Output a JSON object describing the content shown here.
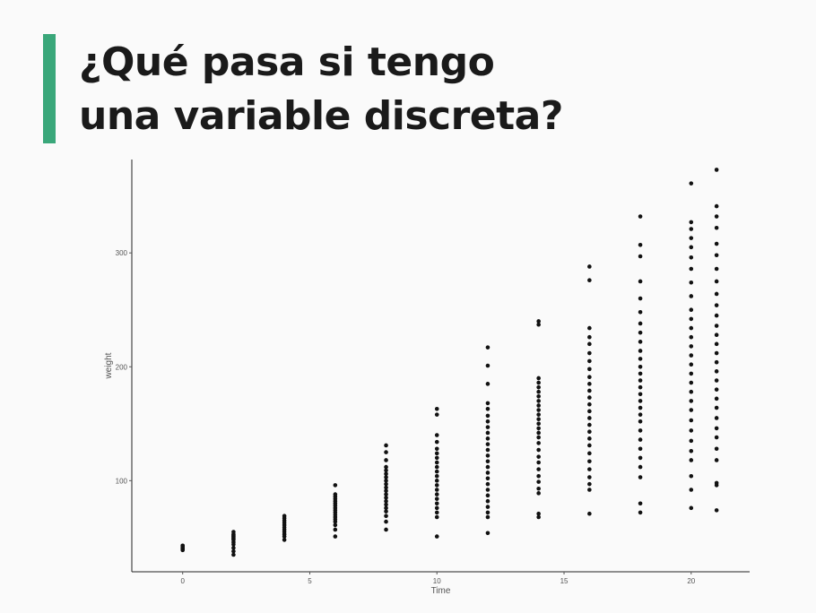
{
  "slide": {
    "title_line1": "¿Qué pasa si tengo",
    "title_line2": "una variable discreta?",
    "accent_color": "#3aa77a"
  },
  "chart_data": {
    "type": "scatter",
    "xlabel": "Time",
    "ylabel": "weight",
    "xlim": [
      -2,
      22.3
    ],
    "ylim": [
      20,
      382
    ],
    "x_ticks": [
      0,
      5,
      10,
      15,
      20
    ],
    "y_ticks": [
      100,
      200,
      300
    ],
    "grid": false,
    "point_color": "#111111",
    "points_by_time": [
      {
        "x": 0,
        "y": [
          39,
          40,
          41,
          42,
          43
        ]
      },
      {
        "x": 2,
        "y": [
          35,
          38,
          41,
          44,
          46,
          48,
          49,
          50,
          51,
          52,
          53,
          55
        ]
      },
      {
        "x": 4,
        "y": [
          48,
          51,
          53,
          55,
          57,
          59,
          61,
          63,
          65,
          67,
          69
        ]
      },
      {
        "x": 6,
        "y": [
          51,
          57,
          61,
          64,
          66,
          68,
          70,
          72,
          74,
          76,
          78,
          80,
          82,
          84,
          86,
          88,
          96
        ]
      },
      {
        "x": 8,
        "y": [
          57,
          64,
          69,
          73,
          76,
          79,
          82,
          85,
          88,
          91,
          94,
          97,
          100,
          103,
          106,
          109,
          112,
          118,
          125,
          131
        ]
      },
      {
        "x": 10,
        "y": [
          51,
          68,
          72,
          76,
          80,
          84,
          88,
          92,
          96,
          100,
          104,
          108,
          112,
          116,
          120,
          124,
          128,
          134,
          140,
          158,
          163
        ]
      },
      {
        "x": 12,
        "y": [
          54,
          68,
          72,
          77,
          82,
          87,
          92,
          97,
          102,
          107,
          112,
          117,
          122,
          127,
          132,
          137,
          142,
          147,
          152,
          157,
          163,
          168,
          185,
          201,
          217
        ]
      },
      {
        "x": 14,
        "y": [
          68,
          71,
          89,
          93,
          99,
          104,
          110,
          116,
          121,
          127,
          133,
          138,
          142,
          146,
          150,
          154,
          158,
          162,
          166,
          170,
          174,
          178,
          182,
          186,
          190,
          237,
          240
        ]
      },
      {
        "x": 16,
        "y": [
          71,
          92,
          97,
          103,
          110,
          117,
          124,
          131,
          137,
          143,
          149,
          155,
          161,
          167,
          173,
          179,
          185,
          191,
          198,
          205,
          212,
          220,
          226,
          234,
          276,
          288
        ]
      },
      {
        "x": 18,
        "y": [
          72,
          80,
          103,
          112,
          120,
          128,
          136,
          144,
          152,
          158,
          164,
          170,
          176,
          182,
          188,
          194,
          200,
          207,
          214,
          222,
          230,
          238,
          248,
          260,
          275,
          297,
          307,
          332
        ]
      },
      {
        "x": 20,
        "y": [
          76,
          92,
          104,
          118,
          126,
          135,
          144,
          153,
          162,
          170,
          178,
          186,
          194,
          202,
          210,
          218,
          226,
          234,
          242,
          250,
          262,
          274,
          286,
          296,
          305,
          313,
          321,
          327,
          361
        ]
      },
      {
        "x": 21,
        "y": [
          74,
          96,
          98,
          118,
          128,
          138,
          146,
          155,
          164,
          172,
          180,
          188,
          196,
          204,
          212,
          220,
          228,
          236,
          245,
          254,
          264,
          275,
          286,
          298,
          308,
          322,
          332,
          341,
          373
        ]
      }
    ]
  }
}
